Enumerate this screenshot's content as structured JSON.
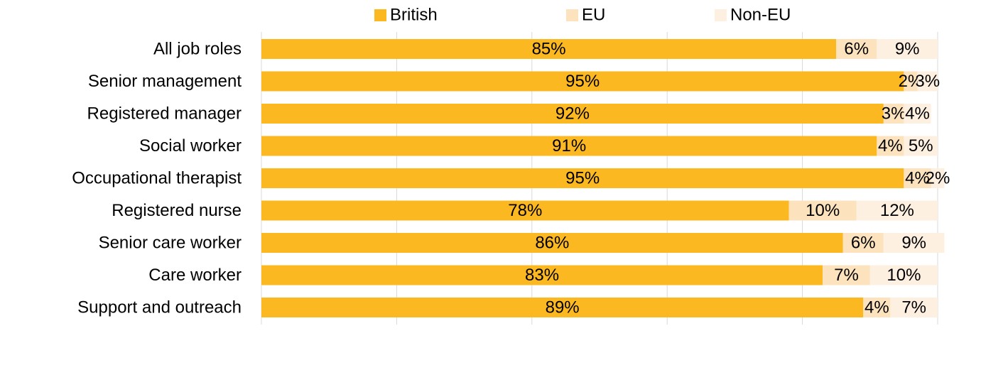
{
  "chart_data": {
    "type": "stacked-bar-horizontal",
    "categories": [
      "All job roles",
      "Senior management",
      "Registered manager",
      "Social worker",
      "Occupational therapist",
      "Registered nurse",
      "Senior care worker",
      "Care worker",
      "Support and outreach"
    ],
    "series": [
      {
        "name": "British",
        "color": "#fbb820",
        "values": [
          85,
          95,
          92,
          91,
          95,
          78,
          86,
          83,
          89
        ],
        "value_labels": [
          "85%",
          "95%",
          "92%",
          "91%",
          "95%",
          "78%",
          "86%",
          "83%",
          "89%"
        ]
      },
      {
        "name": "EU",
        "color": "#fce3bd",
        "values": [
          6,
          2,
          3,
          4,
          4,
          10,
          6,
          7,
          4
        ],
        "value_labels": [
          "6%",
          "2%",
          "3%",
          "4%",
          "4%",
          "10%",
          "6%",
          "7%",
          "4%"
        ]
      },
      {
        "name": "Non-EU",
        "color": "#fdf0e1",
        "values": [
          9,
          3,
          4,
          5,
          2,
          12,
          9,
          10,
          7
        ],
        "value_labels": [
          "9%",
          "3%",
          "4%",
          "5%",
          "2%",
          "12%",
          "9%",
          "10%",
          "7%"
        ]
      }
    ],
    "xlim": [
      0,
      100
    ],
    "xticks": [
      0,
      20,
      40,
      60,
      80,
      100
    ],
    "grid": true,
    "legend": "top"
  }
}
